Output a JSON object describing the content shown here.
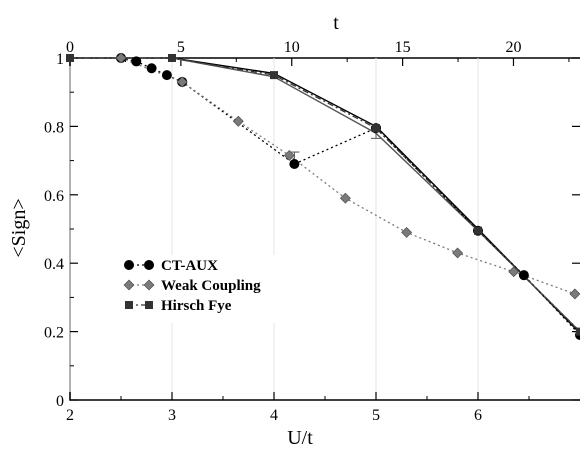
{
  "chart_data": {
    "type": "line",
    "xlabel": "U/t",
    "ylabel": "<Sign>",
    "top_xlabel": "t",
    "xlim": [
      2,
      7
    ],
    "ylim": [
      0,
      1
    ],
    "top_xlim": [
      0,
      23
    ],
    "x_ticks": [
      "2",
      "3",
      "4",
      "5",
      "6"
    ],
    "y_ticks": [
      "0",
      "0.2",
      "0.4",
      "0.6",
      "0.8",
      "1"
    ],
    "top_ticks": [
      "0",
      "5",
      "10",
      "15",
      "20"
    ],
    "legend_position": "center-left",
    "series": [
      {
        "name": "CT-AUX",
        "marker": "circle",
        "color": "#000000",
        "line_style": "dotted",
        "points": [
          [
            2.5,
            1.0
          ],
          [
            2.65,
            0.99
          ],
          [
            2.8,
            0.97
          ],
          [
            2.95,
            0.95
          ],
          [
            3.1,
            0.93
          ],
          [
            4.2,
            0.69
          ],
          [
            5.0,
            0.795
          ],
          [
            6.0,
            0.495
          ],
          [
            6.45,
            0.365
          ],
          [
            7.0,
            0.19
          ]
        ]
      },
      {
        "name": "Weak Coupling",
        "marker": "diamond",
        "color": "#7a7a7a",
        "line_style": "dotted",
        "points": [
          [
            2.5,
            1.0
          ],
          [
            3.1,
            0.93
          ],
          [
            3.65,
            0.815
          ],
          [
            4.15,
            0.715
          ],
          [
            4.7,
            0.59
          ],
          [
            5.3,
            0.49
          ],
          [
            5.8,
            0.43
          ],
          [
            6.35,
            0.375
          ],
          [
            6.95,
            0.31
          ]
        ]
      },
      {
        "name": "Hirsch Fye",
        "marker": "square",
        "color": "#333333",
        "line_style": "dash-dot",
        "points": [
          [
            2.0,
            1.0
          ],
          [
            3.0,
            1.0
          ],
          [
            4.0,
            0.95
          ],
          [
            5.0,
            0.795
          ],
          [
            6.0,
            0.495
          ],
          [
            7.0,
            0.2
          ]
        ]
      }
    ],
    "solid_curves": [
      {
        "color": "#000000",
        "points": [
          [
            3.0,
            1.0
          ],
          [
            4.0,
            0.955
          ],
          [
            5.0,
            0.8
          ],
          [
            6.0,
            0.5
          ],
          [
            7.0,
            0.195
          ]
        ]
      },
      {
        "color": "#555555",
        "points": [
          [
            3.0,
            1.0
          ],
          [
            4.0,
            0.945
          ],
          [
            5.0,
            0.78
          ],
          [
            6.0,
            0.495
          ],
          [
            7.0,
            0.2
          ]
        ]
      }
    ],
    "error_bars": [
      {
        "x": 4.2,
        "y_low": 0.69,
        "y_high": 0.725
      },
      {
        "x": 5.0,
        "y_low": 0.765,
        "y_high": 0.8
      }
    ]
  }
}
